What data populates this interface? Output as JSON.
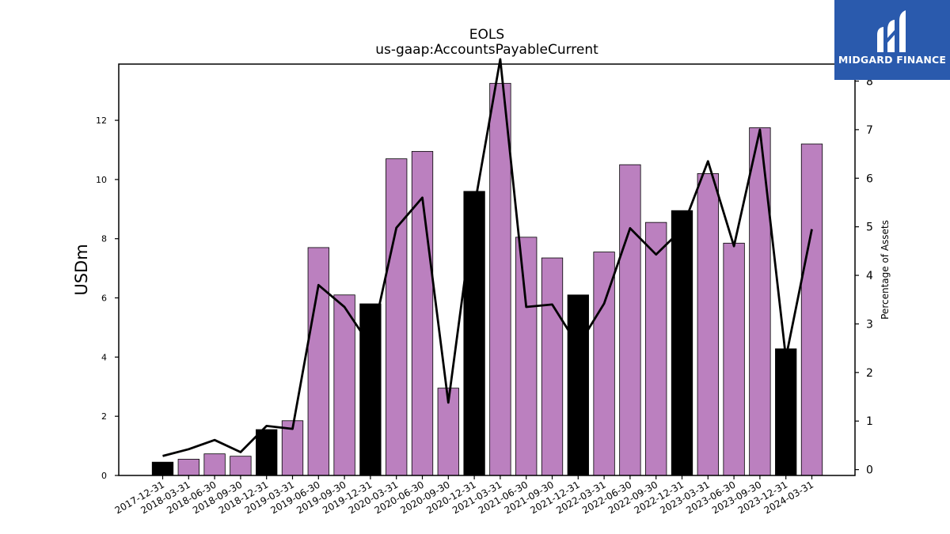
{
  "chart_data": {
    "type": "bar",
    "title": "EOLS",
    "subtitle": "us-gaap:AccountsPayableCurrent",
    "ylabel": "USDm",
    "y2label": "Percentage of Assets",
    "ylim": [
      0,
      13.9
    ],
    "y2lim": [
      -0.12,
      8.35
    ],
    "yticks": [
      0,
      2,
      4,
      6,
      8,
      10,
      12
    ],
    "y2ticks": [
      0,
      1,
      2,
      3,
      4,
      5,
      6,
      7,
      8
    ],
    "categories": [
      "2017-12-31",
      "2018-03-31",
      "2018-06-30",
      "2018-09-30",
      "2018-12-31",
      "2019-03-31",
      "2019-06-30",
      "2019-09-30",
      "2019-12-31",
      "2020-03-31",
      "2020-06-30",
      "2020-09-30",
      "2020-12-31",
      "2021-03-31",
      "2021-06-30",
      "2021-09-30",
      "2021-12-31",
      "2022-03-31",
      "2022-06-30",
      "2022-09-30",
      "2022-12-31",
      "2023-03-31",
      "2023-06-30",
      "2023-09-30",
      "2023-12-31",
      "2024-03-31"
    ],
    "series": [
      {
        "type": "bar",
        "values": [
          0.45,
          0.55,
          0.73,
          0.65,
          1.55,
          1.85,
          7.7,
          6.1,
          5.8,
          10.7,
          10.95,
          2.95,
          9.6,
          13.25,
          8.05,
          7.35,
          6.1,
          7.55,
          10.5,
          8.55,
          8.95,
          10.2,
          7.85,
          11.75,
          4.28,
          11.2
        ],
        "highlight": [
          true,
          false,
          false,
          false,
          true,
          false,
          false,
          false,
          true,
          false,
          false,
          false,
          true,
          false,
          false,
          false,
          true,
          false,
          false,
          false,
          true,
          false,
          false,
          false,
          true,
          false
        ]
      },
      {
        "type": "line",
        "axis": "secondary",
        "values": [
          0.28,
          0.42,
          0.61,
          0.36,
          0.9,
          0.84,
          3.8,
          3.35,
          2.55,
          4.98,
          5.6,
          1.38,
          5.4,
          8.45,
          3.35,
          3.4,
          2.55,
          3.42,
          4.97,
          4.43,
          4.95,
          6.35,
          4.6,
          7.0,
          2.3,
          4.95
        ]
      }
    ],
    "colors": {
      "bar": "#bb80bf",
      "bar_highlight": "#000000",
      "line": "#000000"
    }
  },
  "logo": {
    "text": "MIDGARD FINANCE",
    "background": "#2a5aad"
  }
}
